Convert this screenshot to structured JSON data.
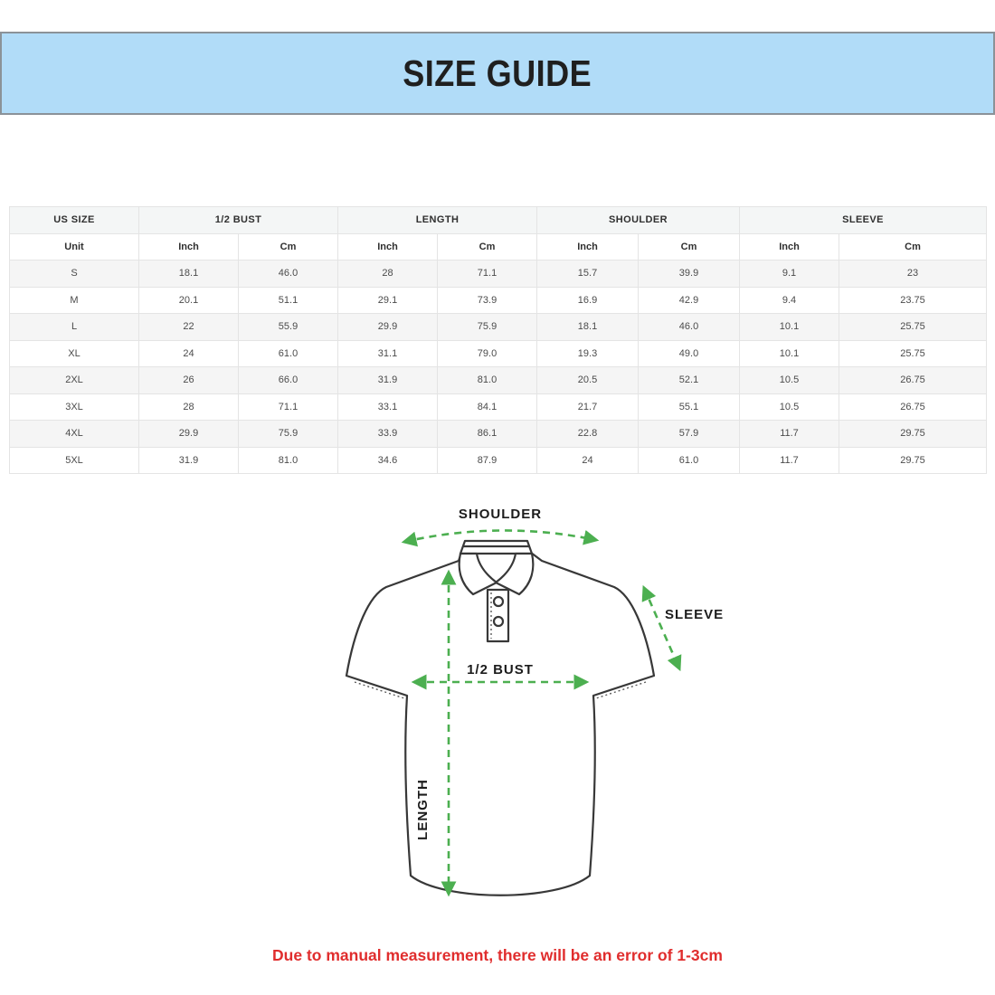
{
  "header": {
    "title": "SIZE GUIDE"
  },
  "table": {
    "groups": [
      {
        "label": "US SIZE"
      },
      {
        "label": "1/2 BUST"
      },
      {
        "label": "LENGTH"
      },
      {
        "label": "SHOULDER"
      },
      {
        "label": "SLEEVE"
      }
    ],
    "unit_row": [
      "Unit",
      "Inch",
      "Cm",
      "Inch",
      "Cm",
      "Inch",
      "Cm",
      "Inch",
      "Cm"
    ],
    "rows": [
      [
        "S",
        "18.1",
        "46.0",
        "28",
        "71.1",
        "15.7",
        "39.9",
        "9.1",
        "23"
      ],
      [
        "M",
        "20.1",
        "51.1",
        "29.1",
        "73.9",
        "16.9",
        "42.9",
        "9.4",
        "23.75"
      ],
      [
        "L",
        "22",
        "55.9",
        "29.9",
        "75.9",
        "18.1",
        "46.0",
        "10.1",
        "25.75"
      ],
      [
        "XL",
        "24",
        "61.0",
        "31.1",
        "79.0",
        "19.3",
        "49.0",
        "10.1",
        "25.75"
      ],
      [
        "2XL",
        "26",
        "66.0",
        "31.9",
        "81.0",
        "20.5",
        "52.1",
        "10.5",
        "26.75"
      ],
      [
        "3XL",
        "28",
        "71.1",
        "33.1",
        "84.1",
        "21.7",
        "55.1",
        "10.5",
        "26.75"
      ],
      [
        "4XL",
        "29.9",
        "75.9",
        "33.9",
        "86.1",
        "22.8",
        "57.9",
        "11.7",
        "29.75"
      ],
      [
        "5XL",
        "31.9",
        "81.0",
        "34.6",
        "87.9",
        "24",
        "61.0",
        "11.7",
        "29.75"
      ]
    ]
  },
  "diagram": {
    "labels": {
      "shoulder": "SHOULDER",
      "sleeve": "SLEEVE",
      "bust": "1/2 BUST",
      "length": "LENGTH"
    }
  },
  "note": {
    "text": "Due to manual measurement, there will be an error of 1-3cm"
  },
  "colors": {
    "banner_bg": "#b1dcf8",
    "banner_border": "#8b9298",
    "arrow_green": "#4caf50",
    "note_red": "#e02d2d",
    "outline": "#383838"
  }
}
